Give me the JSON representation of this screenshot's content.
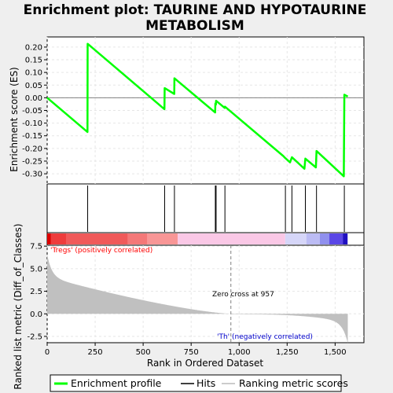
{
  "title_lines": [
    "Enrichment plot: TAURINE AND HYPOTAURINE",
    "METABOLISM"
  ],
  "es_panel": {
    "ylabel": "Enrichment score (ES)",
    "ylim": [
      -0.34,
      0.24
    ],
    "yticks": [
      0.2,
      0.15,
      0.1,
      0.05,
      0.0,
      -0.05,
      -0.1,
      -0.15,
      -0.2,
      -0.25,
      -0.3
    ],
    "ytick_labels": [
      "0.20",
      "0.15",
      "0.10",
      "0.05",
      "0.00",
      "-0.05",
      "-0.10",
      "-0.15",
      "-0.20",
      "-0.25",
      "-0.30"
    ],
    "line_color": "#00ff00"
  },
  "hits": {
    "color": "#000000",
    "positions": [
      211,
      612,
      663,
      876,
      880,
      926,
      1241,
      1275,
      1345,
      1403,
      1548
    ]
  },
  "heat_bar": {
    "segments": [
      {
        "start": 0,
        "end": 20,
        "color": "#dd0000"
      },
      {
        "start": 20,
        "end": 100,
        "color": "#ee3c3c"
      },
      {
        "start": 100,
        "end": 420,
        "color": "#f05a5a"
      },
      {
        "start": 420,
        "end": 520,
        "color": "#f47878"
      },
      {
        "start": 520,
        "end": 680,
        "color": "#f89696"
      },
      {
        "start": 680,
        "end": 1240,
        "color": "#fac8e6"
      },
      {
        "start": 1240,
        "end": 1350,
        "color": "#d6d6f8"
      },
      {
        "start": 1350,
        "end": 1420,
        "color": "#bcbcf4"
      },
      {
        "start": 1420,
        "end": 1470,
        "color": "#9090ee"
      },
      {
        "start": 1470,
        "end": 1540,
        "color": "#5a46e6"
      },
      {
        "start": 1540,
        "end": 1565,
        "color": "#2010c0"
      }
    ]
  },
  "metric_panel": {
    "ylabel": "Ranked list metric (Diff_of_Classes)",
    "ylim": [
      -3.2,
      7.6
    ],
    "yticks": [
      7.5,
      5.0,
      2.5,
      0.0,
      -2.5
    ],
    "ytick_labels": [
      "7.5",
      "5.0",
      "2.5",
      "0.0",
      "-2.5"
    ],
    "fill_color": "#c0c0c0",
    "pos_label": "'Tregs' (positively correlated)",
    "pos_color": "#ff0000",
    "neg_label": "'Th' (negatively correlated)",
    "neg_color": "#0000cc",
    "zero_cross_label": "Zero cross at 957",
    "zero_cross": 957
  },
  "x_axis": {
    "xlabel": "Rank in Ordered Dataset",
    "xlim": [
      0,
      1650
    ],
    "xticks": [
      0,
      250,
      500,
      750,
      1000,
      1250,
      1500
    ],
    "xtick_labels": [
      "0",
      "250",
      "500",
      "750",
      "1,000",
      "1,250",
      "1,500"
    ],
    "n_genes": 1566
  },
  "chart_data": {
    "type": "line",
    "title": "Enrichment plot: TAURINE AND HYPOTAURINE METABOLISM",
    "xlabel": "Rank in Ordered Dataset",
    "ylabel": "Enrichment score (ES)",
    "xlim": [
      0,
      1650
    ],
    "ylim": [
      -0.34,
      0.24
    ],
    "series": [
      {
        "name": "Enrichment profile",
        "x": [
          0,
          210,
          211,
          611,
          612,
          662,
          663,
          875,
          876,
          879,
          880,
          925,
          926,
          1230,
          1240,
          1265,
          1275,
          1340,
          1345,
          1400,
          1403,
          1545,
          1548,
          1566
        ],
        "y": [
          0.0,
          -0.135,
          0.213,
          -0.045,
          0.038,
          0.015,
          0.077,
          -0.058,
          -0.023,
          -0.027,
          -0.012,
          -0.04,
          -0.035,
          -0.23,
          -0.238,
          -0.255,
          -0.235,
          -0.28,
          -0.24,
          -0.275,
          -0.21,
          -0.31,
          0.012,
          0.005
        ]
      }
    ],
    "legend": {
      "placement": "bottom",
      "entries": [
        "Enrichment profile",
        "Hits",
        "Ranking metric scores"
      ]
    }
  }
}
